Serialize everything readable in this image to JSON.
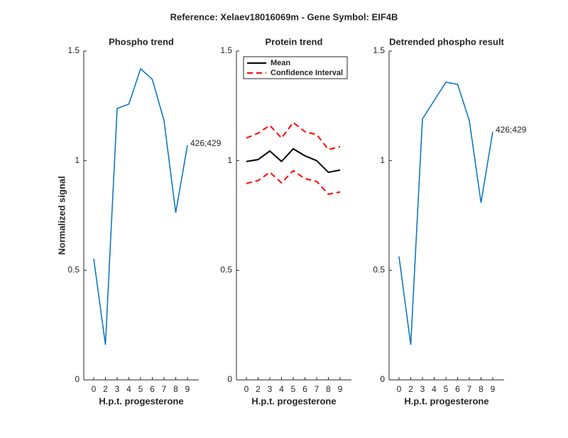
{
  "title": "Reference:  Xelaev18016069m - Gene Symbol:  EIF4B",
  "chart_data": [
    {
      "type": "line",
      "title": "Phospho trend",
      "ylabel": "Normalized signal",
      "xlabel": "H.p.t. progesterone",
      "categories": [
        "0",
        "2",
        "3",
        "4",
        "5",
        "6",
        "7",
        "8",
        "9"
      ],
      "ylim": [
        0,
        1.5
      ],
      "yticks": [
        0,
        0.5,
        1,
        1.5
      ],
      "series": [
        {
          "color": "#0072bd",
          "values": [
            0.553,
            0.16,
            1.238,
            1.258,
            1.419,
            1.371,
            1.183,
            0.763,
            1.07
          ]
        }
      ],
      "annotation": "426;429"
    },
    {
      "type": "band",
      "title": "Protein trend",
      "xlabel": "H.p.t. progesterone",
      "categories": [
        "0",
        "2",
        "3",
        "4",
        "5",
        "6",
        "7",
        "8",
        "9"
      ],
      "ylim": [
        0,
        1.5
      ],
      "yticks": [
        0,
        0.5,
        1,
        1.5
      ],
      "legend": "top-left",
      "series": [
        {
          "name": "Mean",
          "color": "#000000",
          "values": [
            0.996,
            1.005,
            1.044,
            0.996,
            1.054,
            1.022,
            1.0,
            0.947,
            0.957
          ]
        },
        {
          "name": "Confidence Interval",
          "color": "#ff0000",
          "dashed": true,
          "upper": [
            1.103,
            1.125,
            1.161,
            1.103,
            1.174,
            1.132,
            1.119,
            1.051,
            1.064
          ],
          "lower": [
            0.896,
            0.909,
            0.947,
            0.899,
            0.954,
            0.918,
            0.905,
            0.847,
            0.857
          ]
        }
      ]
    },
    {
      "type": "line",
      "title": "Detrended phospho result",
      "xlabel": "H.p.t. progesterone",
      "categories": [
        "0",
        "2",
        "3",
        "4",
        "5",
        "6",
        "7",
        "8",
        "9"
      ],
      "ylim": [
        0,
        1.5
      ],
      "yticks": [
        0,
        0.5,
        1,
        1.5
      ],
      "series": [
        {
          "color": "#0072bd",
          "values": [
            0.563,
            0.16,
            1.19,
            1.274,
            1.358,
            1.348,
            1.183,
            0.808,
            1.132
          ]
        }
      ],
      "annotation": "426;429"
    }
  ]
}
